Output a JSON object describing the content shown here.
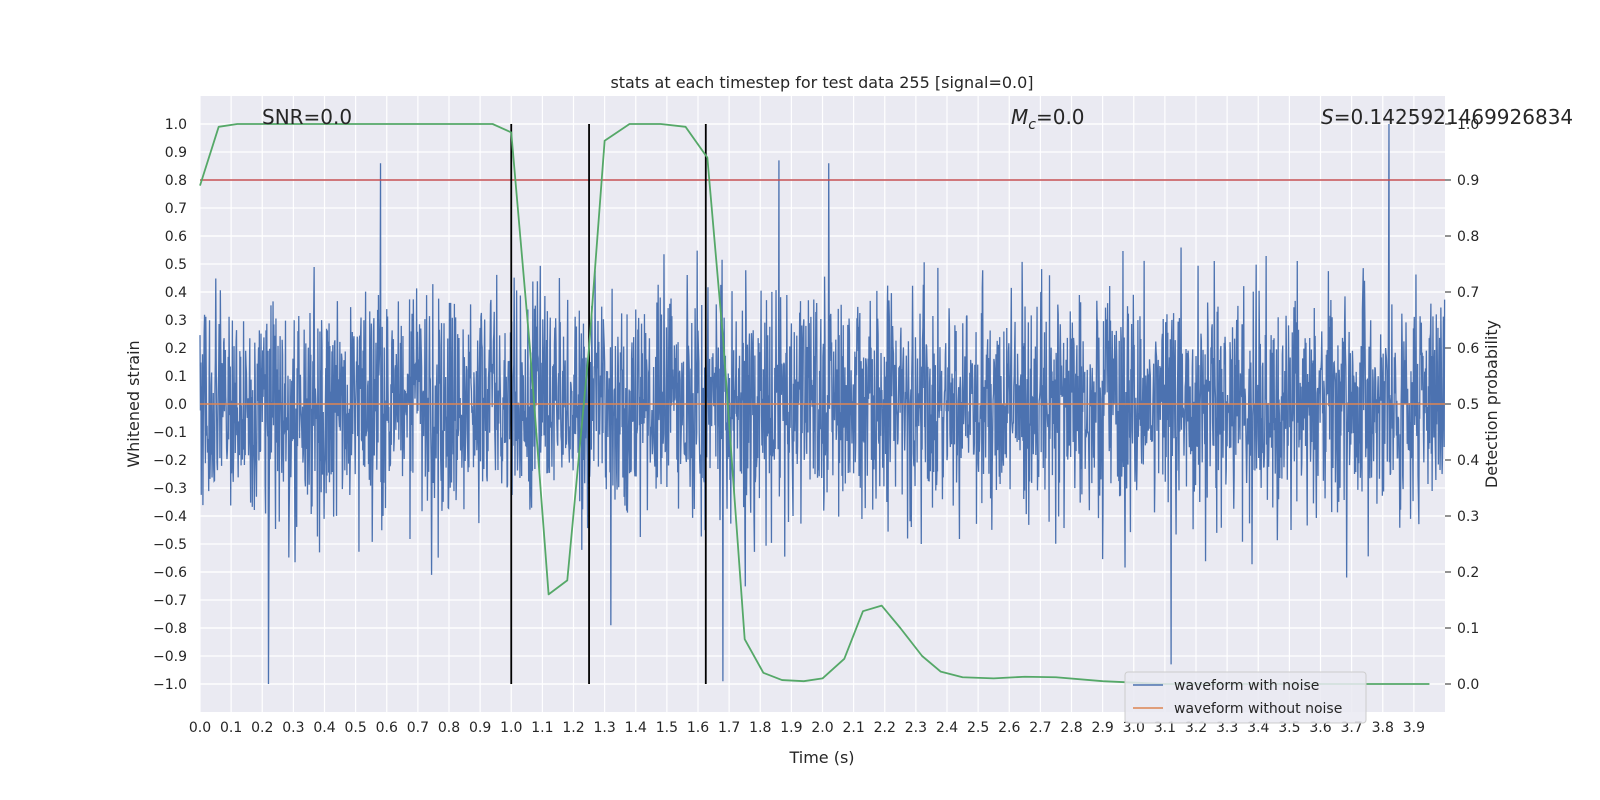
{
  "chart_data": {
    "type": "line",
    "title": "stats at each timestep for test data 255 [signal=0.0]",
    "xlabel": "Time (s)",
    "ylabel": "Whitened strain",
    "y2label": "Detection probability",
    "xlim": [
      0.0,
      4.0
    ],
    "ylim": [
      -1.1,
      1.1
    ],
    "y2lim": [
      -0.05,
      1.05
    ],
    "xticks": [
      "0.0",
      "0.1",
      "0.2",
      "0.3",
      "0.4",
      "0.5",
      "0.6",
      "0.7",
      "0.8",
      "0.9",
      "1.0",
      "1.1",
      "1.2",
      "1.3",
      "1.4",
      "1.5",
      "1.6",
      "1.7",
      "1.8",
      "1.9",
      "2.0",
      "2.1",
      "2.2",
      "2.3",
      "2.4",
      "2.5",
      "2.6",
      "2.7",
      "2.8",
      "2.9",
      "3.0",
      "3.1",
      "3.2",
      "3.3",
      "3.4",
      "3.5",
      "3.6",
      "3.7",
      "3.8",
      "3.9"
    ],
    "yticks": [
      "1.0",
      "0.9",
      "0.8",
      "0.7",
      "0.6",
      "0.5",
      "0.4",
      "0.3",
      "0.2",
      "0.1",
      "0.0",
      "−0.1",
      "−0.2",
      "−0.3",
      "−0.4",
      "−0.5",
      "−0.6",
      "−0.7",
      "−0.8",
      "−0.9",
      "−1.0"
    ],
    "y2ticks": [
      "1.0",
      "0.9",
      "0.8",
      "0.7",
      "0.6",
      "0.5",
      "0.4",
      "0.3",
      "0.2",
      "0.1",
      "0.0"
    ],
    "annotations": {
      "snr": "SNR=0.0",
      "mc_symbol": "M",
      "mc_sub": "c",
      "mc_value": "=0.0",
      "s_symbol": "S",
      "s_value": "=0.1425921469926834"
    },
    "legend": {
      "position": "lower-right",
      "entries": [
        {
          "label": "waveform with noise",
          "color": "#4c72b0"
        },
        {
          "label": "waveform without noise",
          "color": "#dd8452"
        }
      ]
    },
    "series": [
      {
        "name": "waveform with noise",
        "axis": "left",
        "color": "#4c72b0",
        "peak_abs": 1.0,
        "spikes": [
          [
            0.22,
            -1.0
          ],
          [
            0.58,
            0.86
          ],
          [
            1.32,
            -0.79
          ],
          [
            1.68,
            -0.99
          ],
          [
            1.86,
            0.87
          ],
          [
            2.02,
            0.86
          ],
          [
            3.12,
            -0.93
          ],
          [
            3.82,
            1.0
          ]
        ]
      },
      {
        "name": "waveform without noise",
        "axis": "left",
        "color": "#dd8452",
        "x": [
          0.0,
          4.0
        ],
        "y": [
          0.0,
          0.0
        ]
      },
      {
        "name": "detection probability",
        "axis": "right",
        "color": "#55a868",
        "x": [
          0.0,
          0.06,
          0.12,
          0.2,
          0.3,
          0.5,
          0.7,
          0.94,
          1.0,
          1.06,
          1.12,
          1.18,
          1.25,
          1.3,
          1.38,
          1.48,
          1.56,
          1.63,
          1.68,
          1.75,
          1.81,
          1.87,
          1.94,
          2.0,
          2.07,
          2.13,
          2.19,
          2.25,
          2.32,
          2.38,
          2.45,
          2.55,
          2.65,
          2.75,
          2.9,
          3.1,
          3.4,
          3.7,
          3.95
        ],
        "y": [
          0.89,
          0.995,
          1.0,
          1.0,
          1.0,
          1.0,
          1.0,
          1.0,
          0.985,
          0.6,
          0.16,
          0.185,
          0.6,
          0.97,
          1.0,
          1.0,
          0.995,
          0.94,
          0.62,
          0.08,
          0.02,
          0.007,
          0.005,
          0.01,
          0.045,
          0.13,
          0.14,
          0.1,
          0.05,
          0.022,
          0.012,
          0.01,
          0.013,
          0.012,
          0.005,
          0.0,
          0.0,
          0.0,
          0.0
        ]
      }
    ],
    "hlines": [
      {
        "axis": "right",
        "y": 0.9,
        "color": "#c44e52"
      }
    ],
    "vlines": [
      {
        "x": 1.0,
        "color": "#000000"
      },
      {
        "x": 1.25,
        "color": "#000000"
      },
      {
        "x": 1.625,
        "color": "#000000"
      }
    ]
  }
}
